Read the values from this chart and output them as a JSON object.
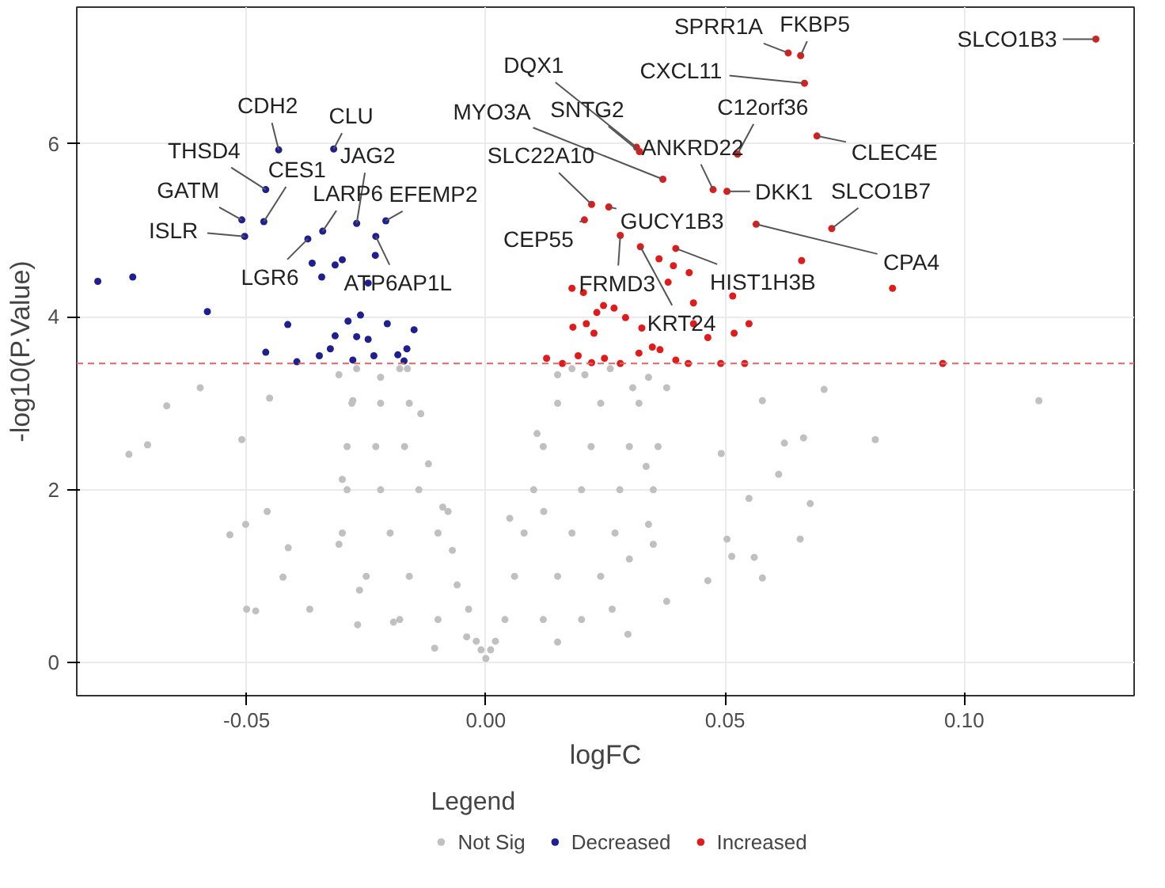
{
  "chart_data": {
    "type": "scatter",
    "xlabel": "logFC",
    "ylabel": "-log10(P.Value)",
    "legend_title": "Legend",
    "xlim": [
      -0.0855,
      0.1355
    ],
    "ylim": [
      -0.38,
      7.58
    ],
    "xticks": [
      {
        "value": -0.05,
        "label": "-0.05"
      },
      {
        "value": 0,
        "label": "0.00"
      },
      {
        "value": 0.05,
        "label": "0.05"
      },
      {
        "value": 0.1,
        "label": "0.10"
      }
    ],
    "yticks": [
      0,
      2,
      4,
      6
    ],
    "grid": true,
    "legend": "bottom",
    "marker": "circle",
    "ref_lines": [
      {
        "axis": "y",
        "value": 3.46,
        "color": "#e06666",
        "line_style": "dashed"
      }
    ],
    "series": [
      {
        "name": "Not Sig",
        "color": "#c0c0c0",
        "x": [
          -0.0746,
          -0.0707,
          -0.0667,
          -0.0597,
          -0.0535,
          -0.05,
          -0.0481,
          -0.0502,
          -0.051,
          -0.0452,
          -0.0457,
          -0.0413,
          -0.0424,
          -0.0368,
          -0.0268,
          0.0707,
          0.1156,
          0.0814,
          0.0664,
          0.0612,
          0.0678,
          0.0657,
          0.0578,
          0.0578,
          0.0504,
          0.0514,
          0.0464,
          0.055,
          0.0297,
          0.0378,
          0.0492,
          0.0624,
          0.0561,
          -0.0307,
          -0.0278,
          -0.03,
          -0.0307,
          -0.0264,
          -0.0193,
          -0.0107,
          -0.0164,
          -0.0136,
          -0.0079,
          -0.0036,
          0.0107,
          0.015,
          0.0207,
          0.0307,
          0.0378,
          0.0335,
          0.035,
          0.0264,
          0.015,
          0.005,
          0.0121,
          -0.018,
          -0.01,
          -0.004,
          -0.025,
          -0.016,
          -0.006,
          -0.03,
          -0.02,
          -0.01,
          -0.007,
          -0.029,
          -0.022,
          -0.014,
          -0.009,
          -0.029,
          -0.023,
          -0.017,
          -0.012,
          -0.028,
          -0.022,
          -0.016,
          -0.027,
          -0.022,
          -0.018,
          0.004,
          0.012,
          0.02,
          0.006,
          0.015,
          0.024,
          0.03,
          0.008,
          0.018,
          0.027,
          0.034,
          0.01,
          0.02,
          0.028,
          0.035,
          0.012,
          0.022,
          0.03,
          0.036,
          0.015,
          0.024,
          0.032,
          0.018,
          0.026,
          0.034,
          0,
          0.001,
          -0.001,
          0.002,
          -0.002
        ],
        "values": [
          2.41,
          2.52,
          2.97,
          3.18,
          1.48,
          0.62,
          0.6,
          1.6,
          2.58,
          3.06,
          1.75,
          1.33,
          0.99,
          0.62,
          0.44,
          3.16,
          3.03,
          2.58,
          2.6,
          2.18,
          1.84,
          1.43,
          0.98,
          3.03,
          1.43,
          1.23,
          0.95,
          1.9,
          0.33,
          0.71,
          2.42,
          2.54,
          1.22,
          3.33,
          3.03,
          2.12,
          1.37,
          0.84,
          0.47,
          0.17,
          3.4,
          2.88,
          1.75,
          0.62,
          2.65,
          3.33,
          3.33,
          3.18,
          3.18,
          2.27,
          1.37,
          0.62,
          0.24,
          1.67,
          1.75,
          0.5,
          0.5,
          0.3,
          1.0,
          1.0,
          0.9,
          1.5,
          1.5,
          1.5,
          1.3,
          2.0,
          2.0,
          2.0,
          1.8,
          2.5,
          2.5,
          2.5,
          2.3,
          3.0,
          3.0,
          3.0,
          3.4,
          3.3,
          3.4,
          0.5,
          0.5,
          0.5,
          1.0,
          1.0,
          1.0,
          1.2,
          1.5,
          1.5,
          1.5,
          1.6,
          2.0,
          2.0,
          2.0,
          2.0,
          2.5,
          2.5,
          2.5,
          2.5,
          3.0,
          3.0,
          3.0,
          3.4,
          3.4,
          3.3,
          0.05,
          0.15,
          0.15,
          0.25,
          0.25
        ]
      },
      {
        "name": "Decreased",
        "color": "#1f1f8f",
        "x": [
          -0.0433,
          -0.0318,
          -0.046,
          -0.0464,
          -0.051,
          -0.0504,
          -0.027,
          -0.0209,
          -0.0341,
          -0.0372,
          -0.023,
          -0.0811,
          -0.0738,
          -0.0582,
          -0.0363,
          -0.0315,
          -0.03,
          -0.0343,
          -0.0231,
          -0.0246,
          -0.0414,
          -0.046,
          -0.0395,
          -0.0288,
          -0.0262,
          -0.0315,
          -0.027,
          -0.0246,
          -0.0206,
          -0.015,
          -0.0165,
          -0.0184,
          -0.0325,
          -0.0348,
          -0.0278,
          -0.0234,
          -0.0171
        ],
        "values": [
          5.93,
          5.94,
          5.47,
          5.1,
          5.12,
          4.93,
          5.08,
          5.11,
          4.99,
          4.9,
          4.93,
          4.41,
          4.46,
          4.06,
          4.62,
          4.6,
          4.66,
          4.46,
          4.71,
          4.39,
          3.91,
          3.59,
          3.48,
          3.95,
          4.02,
          3.78,
          3.77,
          3.74,
          3.92,
          3.85,
          3.63,
          3.56,
          3.63,
          3.55,
          3.5,
          3.55,
          3.49
        ]
      },
      {
        "name": "Increased",
        "color": "#e01b1b",
        "x": [
          0.0632,
          0.0658,
          0.1275,
          0.0666,
          0.0315,
          0.0321,
          0.0526,
          0.0475,
          0.0504,
          0.0692,
          0.037,
          0.0221,
          0.0723,
          0.0565,
          0.0206,
          0.0257,
          0.0281,
          0.0323,
          0.0397,
          0.0425,
          0.066,
          0.085,
          0.0362,
          0.0392,
          0.0516,
          0.0434,
          0.055,
          0.0519,
          0.0464,
          0.0955,
          0.0182,
          0.021,
          0.0226,
          0.0246,
          0.0268,
          0.0232,
          0.0292,
          0.0326,
          0.0348,
          0.0364,
          0.032,
          0.0248,
          0.0193,
          0.016,
          0.0127,
          0.0221,
          0.0281,
          0.0397,
          0.0423,
          0.0491,
          0.0541,
          0.0434,
          0.018,
          0.0204,
          0.0381
        ],
        "values": [
          7.05,
          7.02,
          7.21,
          6.7,
          5.96,
          5.91,
          5.88,
          5.47,
          5.45,
          6.09,
          5.59,
          5.3,
          5.02,
          5.07,
          5.12,
          5.27,
          4.94,
          4.81,
          4.79,
          4.51,
          4.65,
          4.33,
          4.67,
          4.59,
          4.24,
          4.16,
          3.92,
          3.81,
          3.76,
          3.46,
          3.88,
          3.92,
          3.81,
          4.13,
          4.1,
          4.05,
          3.99,
          3.87,
          3.65,
          3.62,
          3.58,
          3.52,
          3.55,
          3.46,
          3.52,
          3.47,
          3.46,
          3.5,
          3.46,
          3.46,
          3.46,
          3.92,
          4.33,
          4.28,
          4.4
        ]
      }
    ],
    "annotations": [
      {
        "text": "CDH2",
        "x": -0.0433,
        "y": 5.93
      },
      {
        "text": "CLU",
        "x": -0.0318,
        "y": 5.94
      },
      {
        "text": "THSD4",
        "x": -0.046,
        "y": 5.47
      },
      {
        "text": "CES1",
        "x": -0.0464,
        "y": 5.1
      },
      {
        "text": "GATM",
        "x": -0.051,
        "y": 5.12
      },
      {
        "text": "ISLR",
        "x": -0.0504,
        "y": 4.93
      },
      {
        "text": "JAG2",
        "x": -0.027,
        "y": 5.08
      },
      {
        "text": "EFEMP2",
        "x": -0.0209,
        "y": 5.11
      },
      {
        "text": "LARP6",
        "x": -0.0341,
        "y": 4.99
      },
      {
        "text": "LGR6",
        "x": -0.0372,
        "y": 4.9
      },
      {
        "text": "ATP6AP1L",
        "x": -0.023,
        "y": 4.93
      },
      {
        "text": "SPRR1A",
        "x": 0.0632,
        "y": 7.05
      },
      {
        "text": "FKBP5",
        "x": 0.0658,
        "y": 7.02
      },
      {
        "text": "SLCO1B3",
        "x": 0.1275,
        "y": 7.21
      },
      {
        "text": "CXCL11",
        "x": 0.0666,
        "y": 6.7
      },
      {
        "text": "DQX1",
        "x": 0.0315,
        "y": 5.96
      },
      {
        "text": "SNTG2",
        "x": 0.0321,
        "y": 5.91
      },
      {
        "text": "C12orf36",
        "x": 0.0526,
        "y": 5.88
      },
      {
        "text": "ANKRD22",
        "x": 0.0475,
        "y": 5.47
      },
      {
        "text": "DKK1",
        "x": 0.0504,
        "y": 5.45
      },
      {
        "text": "CLEC4E",
        "x": 0.0692,
        "y": 6.09
      },
      {
        "text": "MYO3A",
        "x": 0.037,
        "y": 5.59
      },
      {
        "text": "SLC22A10",
        "x": 0.0221,
        "y": 5.3
      },
      {
        "text": "SLCO1B7",
        "x": 0.0723,
        "y": 5.02
      },
      {
        "text": "CPA4",
        "x": 0.0565,
        "y": 5.07
      },
      {
        "text": "CEP55",
        "x": 0.0206,
        "y": 5.12
      },
      {
        "text": "GUCY1B3",
        "x": 0.0257,
        "y": 5.27
      },
      {
        "text": "FRMD3",
        "x": 0.0281,
        "y": 4.94
      },
      {
        "text": "KRT24",
        "x": 0.0323,
        "y": 4.81
      },
      {
        "text": "HIST1H3B",
        "x": 0.0397,
        "y": 4.79
      }
    ]
  }
}
